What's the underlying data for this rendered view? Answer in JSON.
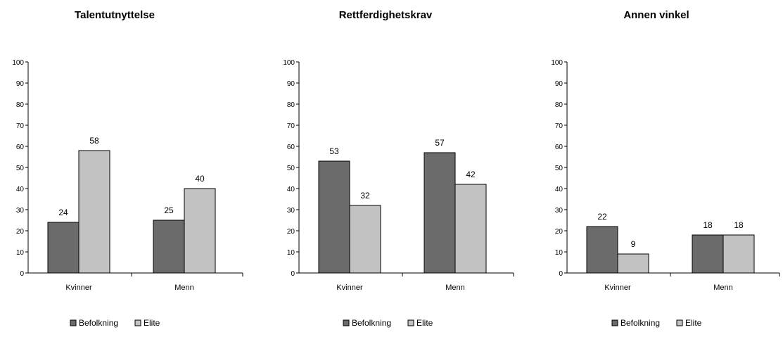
{
  "chart_data": [
    {
      "type": "bar",
      "title": "Talentutnyttelse",
      "categories": [
        "Kvinner",
        "Menn"
      ],
      "series": [
        {
          "name": "Befolkning",
          "values": [
            24,
            25
          ]
        },
        {
          "name": "Elite",
          "values": [
            58,
            40
          ]
        }
      ],
      "ylim": [
        0,
        100
      ],
      "yticks": [
        0,
        10,
        20,
        30,
        40,
        50,
        60,
        70,
        80,
        90,
        100
      ],
      "legend_position": "bottom"
    },
    {
      "type": "bar",
      "title": "Rettferdighetskrav",
      "categories": [
        "Kvinner",
        "Menn"
      ],
      "series": [
        {
          "name": "Befolkning",
          "values": [
            53,
            57
          ]
        },
        {
          "name": "Elite",
          "values": [
            32,
            42
          ]
        }
      ],
      "ylim": [
        0,
        100
      ],
      "yticks": [
        0,
        10,
        20,
        30,
        40,
        50,
        60,
        70,
        80,
        90,
        100
      ],
      "legend_position": "bottom"
    },
    {
      "type": "bar",
      "title": "Annen vinkel",
      "categories": [
        "Kvinner",
        "Menn"
      ],
      "series": [
        {
          "name": "Befolkning",
          "values": [
            22,
            18
          ]
        },
        {
          "name": "Elite",
          "values": [
            9,
            18
          ]
        }
      ],
      "ylim": [
        0,
        100
      ],
      "yticks": [
        0,
        10,
        20,
        30,
        40,
        50,
        60,
        70,
        80,
        90,
        100
      ],
      "legend_position": "bottom"
    }
  ],
  "colors": {
    "Befolkning": "#6b6b6b",
    "Elite": "#c2c2c2",
    "axis": "#000000",
    "text": "#000000"
  }
}
